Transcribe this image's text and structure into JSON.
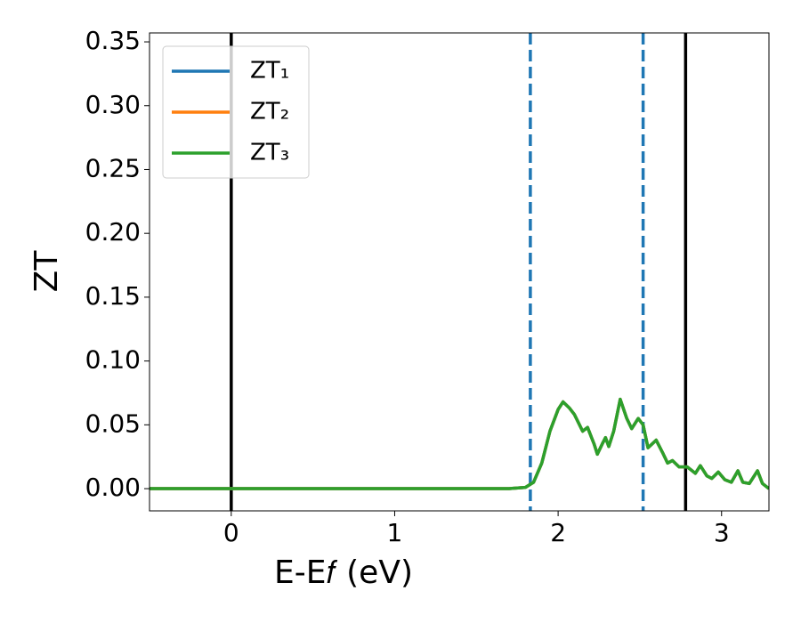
{
  "chart_data": {
    "type": "line",
    "xlabel": "E-E𝑓 (eV)",
    "ylabel": "ZT",
    "x": [
      -0.5,
      1.7,
      1.8,
      1.85,
      1.9,
      1.95,
      2.0,
      2.03,
      2.07,
      2.1,
      2.15,
      2.18,
      2.22,
      2.24,
      2.27,
      2.29,
      2.31,
      2.34,
      2.38,
      2.42,
      2.45,
      2.49,
      2.52,
      2.55,
      2.6,
      2.64,
      2.67,
      2.7,
      2.74,
      2.79,
      2.81,
      2.84,
      2.87,
      2.91,
      2.94,
      2.98,
      3.02,
      3.06,
      3.1,
      3.13,
      3.17,
      3.22,
      3.25,
      3.29
    ],
    "series": [
      {
        "name": "ZT₁",
        "color": "#1f77b4",
        "values": [
          0,
          0,
          0.001,
          0.005,
          0.02,
          0.045,
          0.062,
          0.068,
          0.063,
          0.058,
          0.045,
          0.048,
          0.035,
          0.027,
          0.035,
          0.04,
          0.033,
          0.045,
          0.07,
          0.055,
          0.047,
          0.055,
          0.05,
          0.032,
          0.038,
          0.028,
          0.02,
          0.022,
          0.017,
          0.017,
          0.015,
          0.012,
          0.018,
          0.01,
          0.008,
          0.013,
          0.007,
          0.005,
          0.014,
          0.005,
          0.004,
          0.014,
          0.004,
          0
        ]
      },
      {
        "name": "ZT₂",
        "color": "#ff7f0e",
        "values": [
          0,
          0,
          0.001,
          0.005,
          0.02,
          0.045,
          0.062,
          0.068,
          0.063,
          0.058,
          0.045,
          0.048,
          0.035,
          0.027,
          0.035,
          0.04,
          0.033,
          0.045,
          0.07,
          0.055,
          0.047,
          0.055,
          0.05,
          0.032,
          0.038,
          0.028,
          0.02,
          0.022,
          0.017,
          0.017,
          0.015,
          0.012,
          0.018,
          0.01,
          0.008,
          0.013,
          0.007,
          0.005,
          0.014,
          0.005,
          0.004,
          0.014,
          0.004,
          0
        ]
      },
      {
        "name": "ZT₃",
        "color": "#2ca02c",
        "values": [
          0,
          0,
          0.001,
          0.005,
          0.02,
          0.045,
          0.062,
          0.068,
          0.063,
          0.058,
          0.045,
          0.048,
          0.035,
          0.027,
          0.035,
          0.04,
          0.033,
          0.045,
          0.07,
          0.055,
          0.047,
          0.055,
          0.05,
          0.032,
          0.038,
          0.028,
          0.02,
          0.022,
          0.017,
          0.017,
          0.015,
          0.012,
          0.018,
          0.01,
          0.008,
          0.013,
          0.007,
          0.005,
          0.014,
          0.005,
          0.004,
          0.014,
          0.004,
          0
        ]
      }
    ],
    "vlines": [
      {
        "x": 0,
        "color": "#000000",
        "dashed": false
      },
      {
        "x": 2.78,
        "color": "#000000",
        "dashed": false
      },
      {
        "x": 1.83,
        "color": "#1f77b4",
        "dashed": true
      },
      {
        "x": 2.52,
        "color": "#1f77b4",
        "dashed": true
      }
    ],
    "xlim": [
      -0.5,
      3.29
    ],
    "ylim": [
      -0.0174,
      0.357
    ],
    "xticks": [
      0,
      1,
      2,
      3
    ],
    "yticks": [
      {
        "value": 0,
        "label": "0.00"
      },
      {
        "value": 0.05,
        "label": "0.05"
      },
      {
        "value": 0.1,
        "label": "0.10"
      },
      {
        "value": 0.15,
        "label": "0.15"
      },
      {
        "value": 0.2,
        "label": "0.20"
      },
      {
        "value": 0.25,
        "label": "0.25"
      },
      {
        "value": 0.3,
        "label": "0.30"
      },
      {
        "value": 0.35,
        "label": "0.35"
      }
    ],
    "legend": "upper left"
  }
}
